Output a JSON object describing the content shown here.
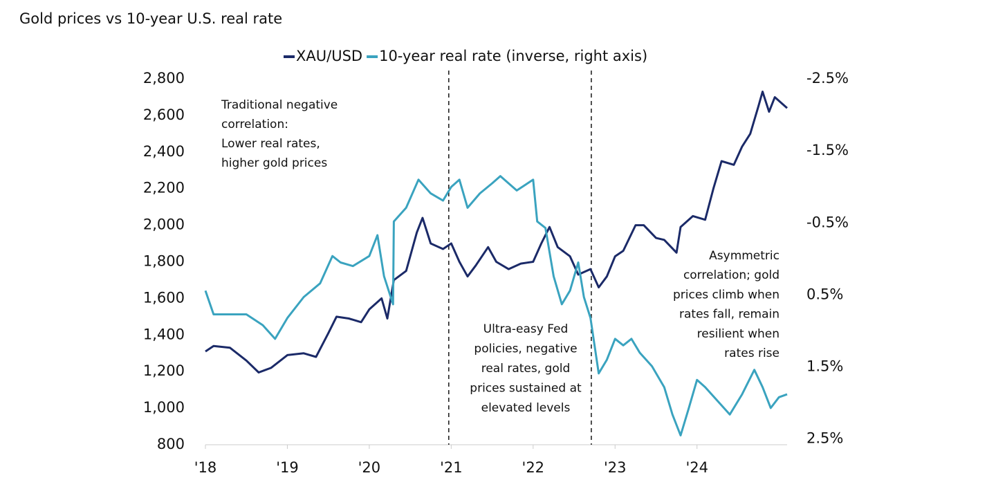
{
  "chart_data": {
    "type": "line",
    "title": "Gold prices vs 10-year U.S. real rate",
    "xlim": [
      2018,
      2025.1
    ],
    "xticks": [
      {
        "value": 2018,
        "label": "'18"
      },
      {
        "value": 2019,
        "label": "'19"
      },
      {
        "value": 2020,
        "label": "'20"
      },
      {
        "value": 2021,
        "label": "'21"
      },
      {
        "value": 2022,
        "label": "'22"
      },
      {
        "value": 2023,
        "label": "'23"
      },
      {
        "value": 2024,
        "label": "'24"
      }
    ],
    "ylim": [
      800,
      2800
    ],
    "yticks": [
      800,
      {
        "value": 1000,
        "label": "1,000"
      },
      {
        "value": 1200,
        "label": "1,200"
      },
      {
        "value": 1400,
        "label": "1,400"
      },
      {
        "value": 1600,
        "label": "1,600"
      },
      {
        "value": 1800,
        "label": "1,800"
      },
      {
        "value": 2000,
        "label": "2,000"
      },
      {
        "value": 2200,
        "label": "2,200"
      },
      {
        "value": 2400,
        "label": "2,400"
      },
      {
        "value": 2600,
        "label": "2,600"
      },
      {
        "value": 2800,
        "label": "2,800"
      }
    ],
    "y2lim": [
      2.58,
      -2.5
    ],
    "y2ticks": [
      {
        "value": -2.5,
        "label": "-2.5%"
      },
      {
        "value": -1.5,
        "label": "-1.5%"
      },
      {
        "value": -0.5,
        "label": "-0.5%"
      },
      {
        "value": 0.5,
        "label": "0.5%"
      },
      {
        "value": 1.5,
        "label": "1.5%"
      },
      {
        "value": 2.5,
        "label": "2.5%"
      }
    ],
    "reference_lines": [
      2020.97,
      2022.71
    ],
    "series": [
      {
        "name": "XAU/USD",
        "color": "#1b2a68",
        "x": [
          2018.0,
          2018.1,
          2018.3,
          2018.5,
          2018.65,
          2018.8,
          2019.0,
          2019.2,
          2019.35,
          2019.5,
          2019.6,
          2019.75,
          2019.9,
          2020.0,
          2020.15,
          2020.22,
          2020.3,
          2020.45,
          2020.58,
          2020.65,
          2020.75,
          2020.9,
          2021.0,
          2021.1,
          2021.2,
          2021.3,
          2021.45,
          2021.55,
          2021.7,
          2021.85,
          2022.0,
          2022.1,
          2022.2,
          2022.3,
          2022.45,
          2022.55,
          2022.7,
          2022.8,
          2022.9,
          2023.0,
          2023.1,
          2023.25,
          2023.35,
          2023.5,
          2023.6,
          2023.75,
          2023.8,
          2023.95,
          2024.1,
          2024.2,
          2024.3,
          2024.45,
          2024.55,
          2024.65,
          2024.75,
          2024.8,
          2024.88,
          2024.95,
          2025.1
        ],
        "values": [
          1310,
          1340,
          1330,
          1260,
          1195,
          1220,
          1290,
          1300,
          1280,
          1410,
          1500,
          1490,
          1470,
          1540,
          1600,
          1490,
          1700,
          1750,
          1960,
          2040,
          1900,
          1870,
          1900,
          1800,
          1720,
          1780,
          1880,
          1800,
          1760,
          1790,
          1800,
          1900,
          1990,
          1880,
          1830,
          1730,
          1760,
          1660,
          1720,
          1830,
          1860,
          2000,
          2000,
          1930,
          1920,
          1850,
          1990,
          2050,
          2030,
          2200,
          2350,
          2330,
          2430,
          2500,
          2650,
          2730,
          2620,
          2700,
          2640
        ]
      },
      {
        "name": "10-year real rate (inverse, right axis)",
        "color": "#3aa3bf",
        "axis": "y2",
        "x": [
          2018.0,
          2018.1,
          2018.3,
          2018.5,
          2018.7,
          2018.85,
          2019.0,
          2019.2,
          2019.4,
          2019.55,
          2019.65,
          2019.8,
          2020.0,
          2020.1,
          2020.18,
          2020.29,
          2020.3,
          2020.45,
          2020.6,
          2020.75,
          2020.9,
          2021.0,
          2021.1,
          2021.2,
          2021.35,
          2021.5,
          2021.6,
          2021.8,
          2022.0,
          2022.05,
          2022.15,
          2022.25,
          2022.35,
          2022.45,
          2022.55,
          2022.62,
          2022.7,
          2022.8,
          2022.9,
          2023.0,
          2023.1,
          2023.2,
          2023.3,
          2023.45,
          2023.6,
          2023.7,
          2023.8,
          2023.9,
          2024.0,
          2024.1,
          2024.25,
          2024.4,
          2024.55,
          2024.7,
          2024.8,
          2024.9,
          2025.0,
          2025.1
        ],
        "values": [
          0.44,
          0.77,
          0.77,
          0.77,
          0.92,
          1.11,
          0.82,
          0.53,
          0.34,
          -0.04,
          0.05,
          0.1,
          -0.04,
          -0.33,
          0.24,
          0.63,
          -0.52,
          -0.71,
          -1.1,
          -0.91,
          -0.81,
          -1.0,
          -1.1,
          -0.71,
          -0.91,
          -1.05,
          -1.15,
          -0.95,
          -1.1,
          -0.52,
          -0.43,
          0.24,
          0.63,
          0.44,
          0.05,
          0.53,
          0.82,
          1.59,
          1.4,
          1.11,
          1.2,
          1.11,
          1.3,
          1.49,
          1.78,
          2.16,
          2.45,
          2.07,
          1.68,
          1.78,
          1.97,
          2.16,
          1.88,
          1.54,
          1.78,
          2.07,
          1.92,
          1.88
        ]
      }
    ],
    "annotations": [
      [
        "Traditional negative",
        "correlation:",
        "Lower real rates,",
        "higher gold prices"
      ],
      [
        "Ultra-easy Fed",
        "policies, negative",
        "real rates, gold",
        "prices sustained at",
        "elevated levels"
      ],
      [
        "Asymmetric",
        "correlation; gold",
        "prices climb when",
        "rates fall, remain",
        "resilient when",
        "rates rise"
      ]
    ]
  }
}
